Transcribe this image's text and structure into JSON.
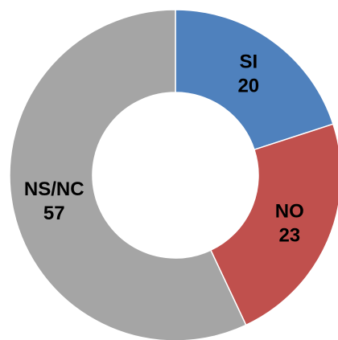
{
  "chart_data": {
    "type": "donut",
    "categories": [
      "SI",
      "NO",
      "NS/NC"
    ],
    "values": [
      20,
      23,
      57
    ],
    "colors": [
      "#4f81bd",
      "#c0504d",
      "#a5a5a5"
    ]
  }
}
